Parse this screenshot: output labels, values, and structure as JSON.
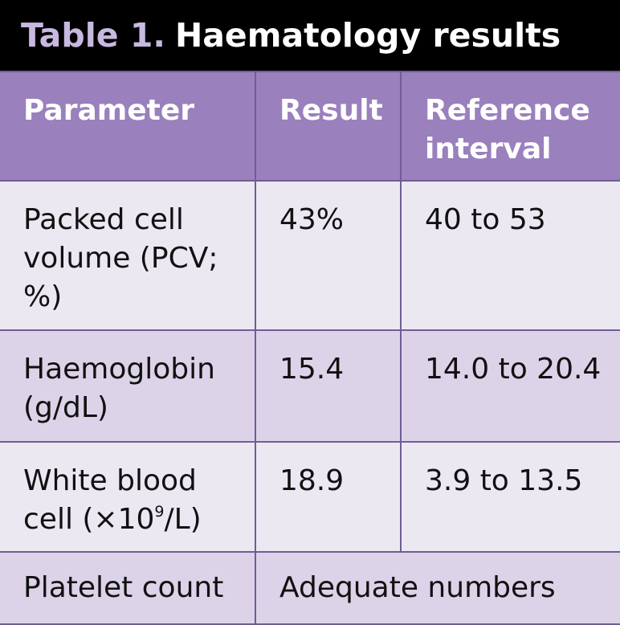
{
  "title": {
    "label": "Table 1.",
    "text": "Haematology results"
  },
  "colors": {
    "title_background": "#000000",
    "title_label": "#c7b9df",
    "title_text": "#ffffff",
    "header_background": "#9a80bd",
    "header_text": "#ffffff",
    "row_light": "#ece8f2",
    "row_dark": "#dcd3e8",
    "grid_lines": "#6f5d96"
  },
  "table": {
    "headers": [
      "Parameter",
      "Result",
      "Reference interval"
    ],
    "rows": [
      {
        "parameter": "Packed cell volume (PCV; %)",
        "result": "43%",
        "reference": "40 to 53"
      },
      {
        "parameter": "Haemoglobin (g/dL)",
        "result": "15.4",
        "reference": "14.0 to 20.4"
      },
      {
        "parameter_prefix": "White blood cell (×10",
        "parameter_exponent": "9",
        "parameter_suffix": "/L)",
        "result": "18.9",
        "reference": "3.9 to 13.5"
      },
      {
        "parameter": "Platelet count",
        "result": "Adequate numbers"
      }
    ]
  }
}
